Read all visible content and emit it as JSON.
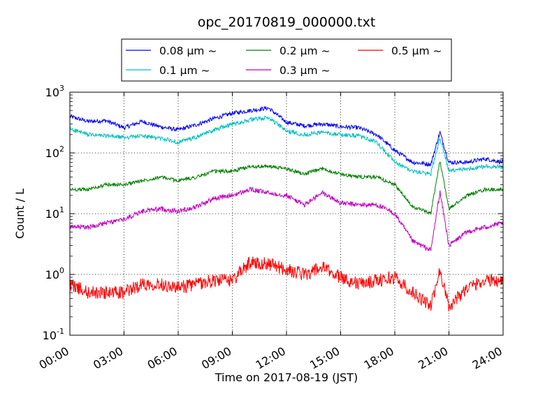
{
  "chart_data": {
    "type": "line",
    "title": "opc_20170819_000000.txt",
    "xlabel": "Time on 2017-08-19 (JST)",
    "ylabel": "Count / L",
    "yscale": "log",
    "ylim": [
      0.1,
      1000
    ],
    "xlim": [
      "00:00",
      "24:00"
    ],
    "grid": true,
    "legend": "top",
    "x_ticks": [
      "00:00",
      "03:00",
      "06:00",
      "09:00",
      "12:00",
      "15:00",
      "18:00",
      "21:00",
      "24:00"
    ],
    "y_ticks": [
      {
        "value": 0.1,
        "base": "10",
        "exp": "-1"
      },
      {
        "value": 1,
        "base": "10",
        "exp": "0"
      },
      {
        "value": 10,
        "base": "10",
        "exp": "1"
      },
      {
        "value": 100,
        "base": "10",
        "exp": "2"
      },
      {
        "value": 1000,
        "base": "10",
        "exp": "3"
      }
    ],
    "x": [
      "00:00",
      "01:00",
      "02:00",
      "03:00",
      "04:00",
      "05:00",
      "06:00",
      "07:00",
      "08:00",
      "09:00",
      "10:00",
      "11:00",
      "12:00",
      "13:00",
      "14:00",
      "15:00",
      "16:00",
      "17:00",
      "18:00",
      "19:00",
      "20:00",
      "20:30",
      "21:00",
      "22:00",
      "23:00",
      "24:00"
    ],
    "series": [
      {
        "name": "0.08 μm ~",
        "color": "#0000ff",
        "values": [
          400,
          330,
          340,
          260,
          330,
          270,
          240,
          290,
          370,
          450,
          500,
          550,
          320,
          280,
          300,
          270,
          260,
          200,
          110,
          70,
          65,
          220,
          70,
          70,
          80,
          70
        ]
      },
      {
        "name": "0.1 μm ~",
        "color": "#00bfbf",
        "values": [
          250,
          200,
          190,
          180,
          190,
          175,
          150,
          180,
          240,
          300,
          350,
          380,
          230,
          200,
          220,
          200,
          190,
          150,
          70,
          50,
          45,
          180,
          50,
          55,
          60,
          60
        ]
      },
      {
        "name": "0.2 μm ~",
        "color": "#007f00",
        "values": [
          25,
          25,
          30,
          30,
          35,
          40,
          35,
          40,
          50,
          50,
          60,
          60,
          55,
          45,
          55,
          45,
          40,
          40,
          30,
          13,
          10,
          75,
          12,
          20,
          25,
          25
        ]
      },
      {
        "name": "0.3 μm ~",
        "color": "#bf00bf",
        "values": [
          6,
          6,
          7,
          8,
          11,
          12,
          11,
          13,
          18,
          20,
          25,
          22,
          20,
          14,
          22,
          15,
          14,
          14,
          10,
          3.5,
          2.5,
          23,
          3,
          5,
          6,
          7
        ]
      },
      {
        "name": "0.5 μm ~",
        "color": "#ff0000",
        "values": [
          0.7,
          0.5,
          0.5,
          0.5,
          0.7,
          0.7,
          0.6,
          0.7,
          0.8,
          0.8,
          1.6,
          1.5,
          1.2,
          1.0,
          1.3,
          0.9,
          0.7,
          0.8,
          0.9,
          0.5,
          0.3,
          1.2,
          0.3,
          0.6,
          0.8,
          0.8
        ]
      }
    ]
  }
}
